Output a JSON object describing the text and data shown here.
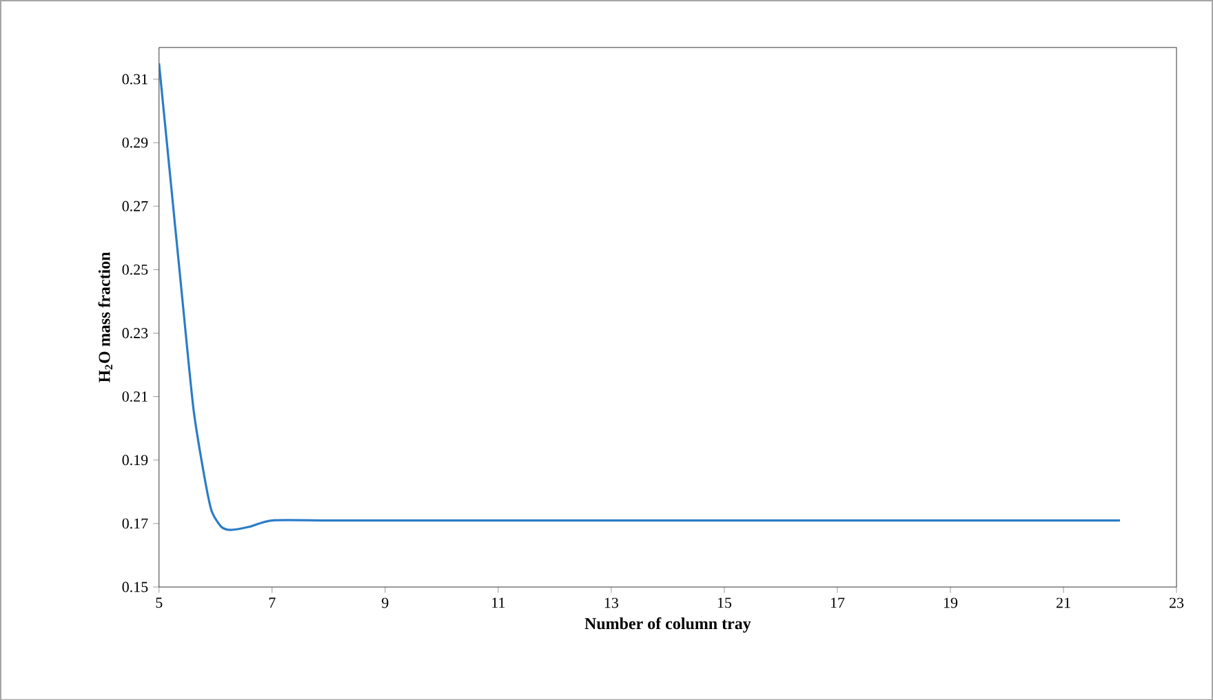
{
  "chart_data": {
    "type": "line",
    "xlabel": "Number of column tray",
    "ylabel": "H$_{2}$O mass fraction",
    "x": [
      5,
      5.2,
      5.4,
      5.61,
      5.8,
      5.93,
      6.1,
      6.27,
      6.6,
      7,
      8,
      10,
      14,
      18,
      22
    ],
    "series": [
      {
        "color": "#2a7cc8",
        "values": [
          0.315,
          0.279,
          0.243,
          0.206,
          0.185,
          0.174,
          0.169,
          0.168,
          0.169,
          0.171,
          0.171,
          0.171,
          0.171,
          0.171,
          0.171
        ]
      }
    ],
    "xlim": [
      5,
      23
    ],
    "xticks": [
      5,
      7,
      9,
      11,
      13,
      15,
      17,
      19,
      21,
      23
    ],
    "ylim": [
      0.15,
      0.32
    ],
    "yticks": [
      0.15,
      0.17,
      0.19,
      0.21,
      0.23,
      0.25,
      0.27,
      0.29,
      0.31
    ],
    "grid": false,
    "marker": "none",
    "line_style": "solid"
  }
}
